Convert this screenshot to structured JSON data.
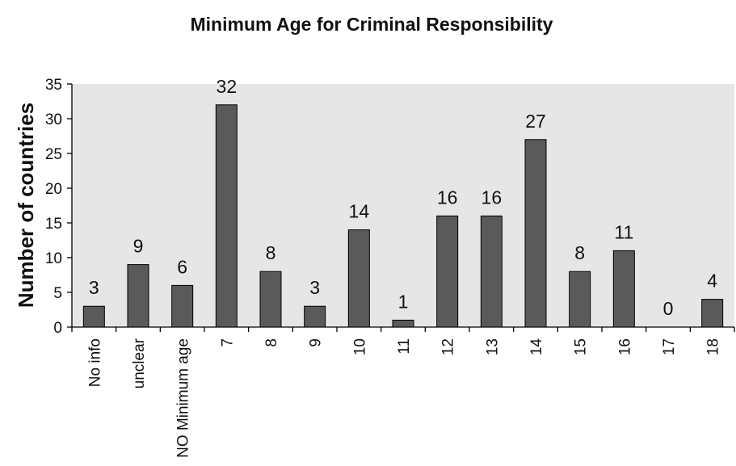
{
  "chart_data": {
    "type": "bar",
    "title": "Minimum Age for Criminal Responsibility",
    "xlabel": "",
    "ylabel": "Number of countries",
    "categories": [
      "No info",
      "unclear",
      "NO Minimum age",
      "7",
      "8",
      "9",
      "10",
      "11",
      "12",
      "13",
      "14",
      "15",
      "16",
      "17",
      "18"
    ],
    "values": [
      3,
      9,
      6,
      32,
      8,
      3,
      14,
      1,
      16,
      16,
      27,
      8,
      11,
      0,
      4
    ],
    "ylim": [
      0,
      35
    ],
    "yticks": [
      "0",
      "5",
      "10",
      "15",
      "20",
      "25",
      "30",
      "35"
    ],
    "grid": false,
    "data_labels": true,
    "colors": {
      "bar": "#5a5a5a",
      "bar_edge": "#000000",
      "plot_background": "#e6e6e6",
      "page_background": "#ffffff"
    }
  }
}
